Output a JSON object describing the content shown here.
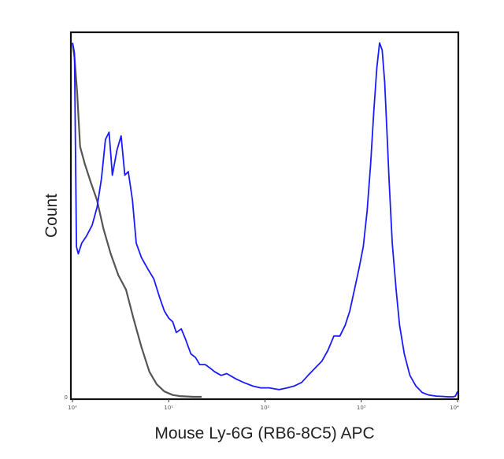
{
  "chart_data": {
    "type": "line",
    "xlabel": "Mouse Ly-6G (RB6-8C5) APC",
    "ylabel": "Count",
    "x_scale": "log",
    "xlim": [
      1,
      10000
    ],
    "ylim": [
      0,
      1
    ],
    "grid": false,
    "x_ticks": [
      {
        "value": 1,
        "label": "10⁰"
      },
      {
        "value": 10,
        "label": "10¹"
      },
      {
        "value": 100,
        "label": "10²"
      },
      {
        "value": 1000,
        "label": "10³"
      },
      {
        "value": 10000,
        "label": "10⁴"
      }
    ],
    "y_ticks": [
      {
        "value": 0,
        "label": "0"
      }
    ],
    "series": [
      {
        "color": "#555555",
        "x": [
          1.0,
          1.05,
          1.12,
          1.2,
          1.35,
          1.55,
          1.8,
          2.1,
          2.5,
          3.0,
          3.6,
          4.3,
          5.2,
          6.3,
          7.5,
          9.0,
          11,
          13,
          15,
          18,
          22
        ],
        "y": [
          0.99,
          0.95,
          0.85,
          0.7,
          0.65,
          0.6,
          0.55,
          0.47,
          0.4,
          0.34,
          0.3,
          0.22,
          0.14,
          0.07,
          0.035,
          0.015,
          0.005,
          0.002,
          0.001,
          0.0,
          0.0
        ]
      },
      {
        "color": "#1a1aff",
        "x": [
          1.0,
          1.02,
          1.05,
          1.1,
          1.15,
          1.25,
          1.4,
          1.6,
          1.8,
          2.0,
          2.2,
          2.4,
          2.6,
          2.9,
          3.2,
          3.5,
          3.8,
          4.2,
          4.6,
          5.2,
          6.0,
          7.0,
          8.0,
          9.0,
          10,
          11,
          12,
          13.5,
          15,
          17,
          19,
          21,
          24,
          27,
          30,
          35,
          40,
          50,
          60,
          75,
          90,
          110,
          140,
          170,
          200,
          240,
          280,
          330,
          390,
          450,
          520,
          600,
          680,
          760,
          850,
          950,
          1050,
          1150,
          1250,
          1350,
          1450,
          1550,
          1650,
          1750,
          1850,
          1950,
          2100,
          2300,
          2500,
          2800,
          3200,
          3700,
          4300,
          5000,
          6000,
          7000,
          8000,
          9000,
          9500,
          10000
        ],
        "y": [
          0.99,
          0.98,
          0.96,
          0.42,
          0.4,
          0.43,
          0.45,
          0.48,
          0.53,
          0.61,
          0.72,
          0.74,
          0.62,
          0.69,
          0.73,
          0.62,
          0.63,
          0.55,
          0.43,
          0.39,
          0.36,
          0.33,
          0.28,
          0.24,
          0.22,
          0.21,
          0.18,
          0.19,
          0.16,
          0.12,
          0.11,
          0.09,
          0.09,
          0.08,
          0.07,
          0.06,
          0.065,
          0.05,
          0.04,
          0.03,
          0.025,
          0.025,
          0.02,
          0.025,
          0.03,
          0.04,
          0.06,
          0.08,
          0.1,
          0.13,
          0.17,
          0.17,
          0.2,
          0.24,
          0.3,
          0.36,
          0.42,
          0.52,
          0.65,
          0.8,
          0.92,
          0.99,
          0.97,
          0.88,
          0.74,
          0.6,
          0.43,
          0.3,
          0.2,
          0.12,
          0.06,
          0.03,
          0.012,
          0.005,
          0.002,
          0.001,
          0.0,
          0.0,
          0.002,
          0.015
        ]
      }
    ]
  }
}
